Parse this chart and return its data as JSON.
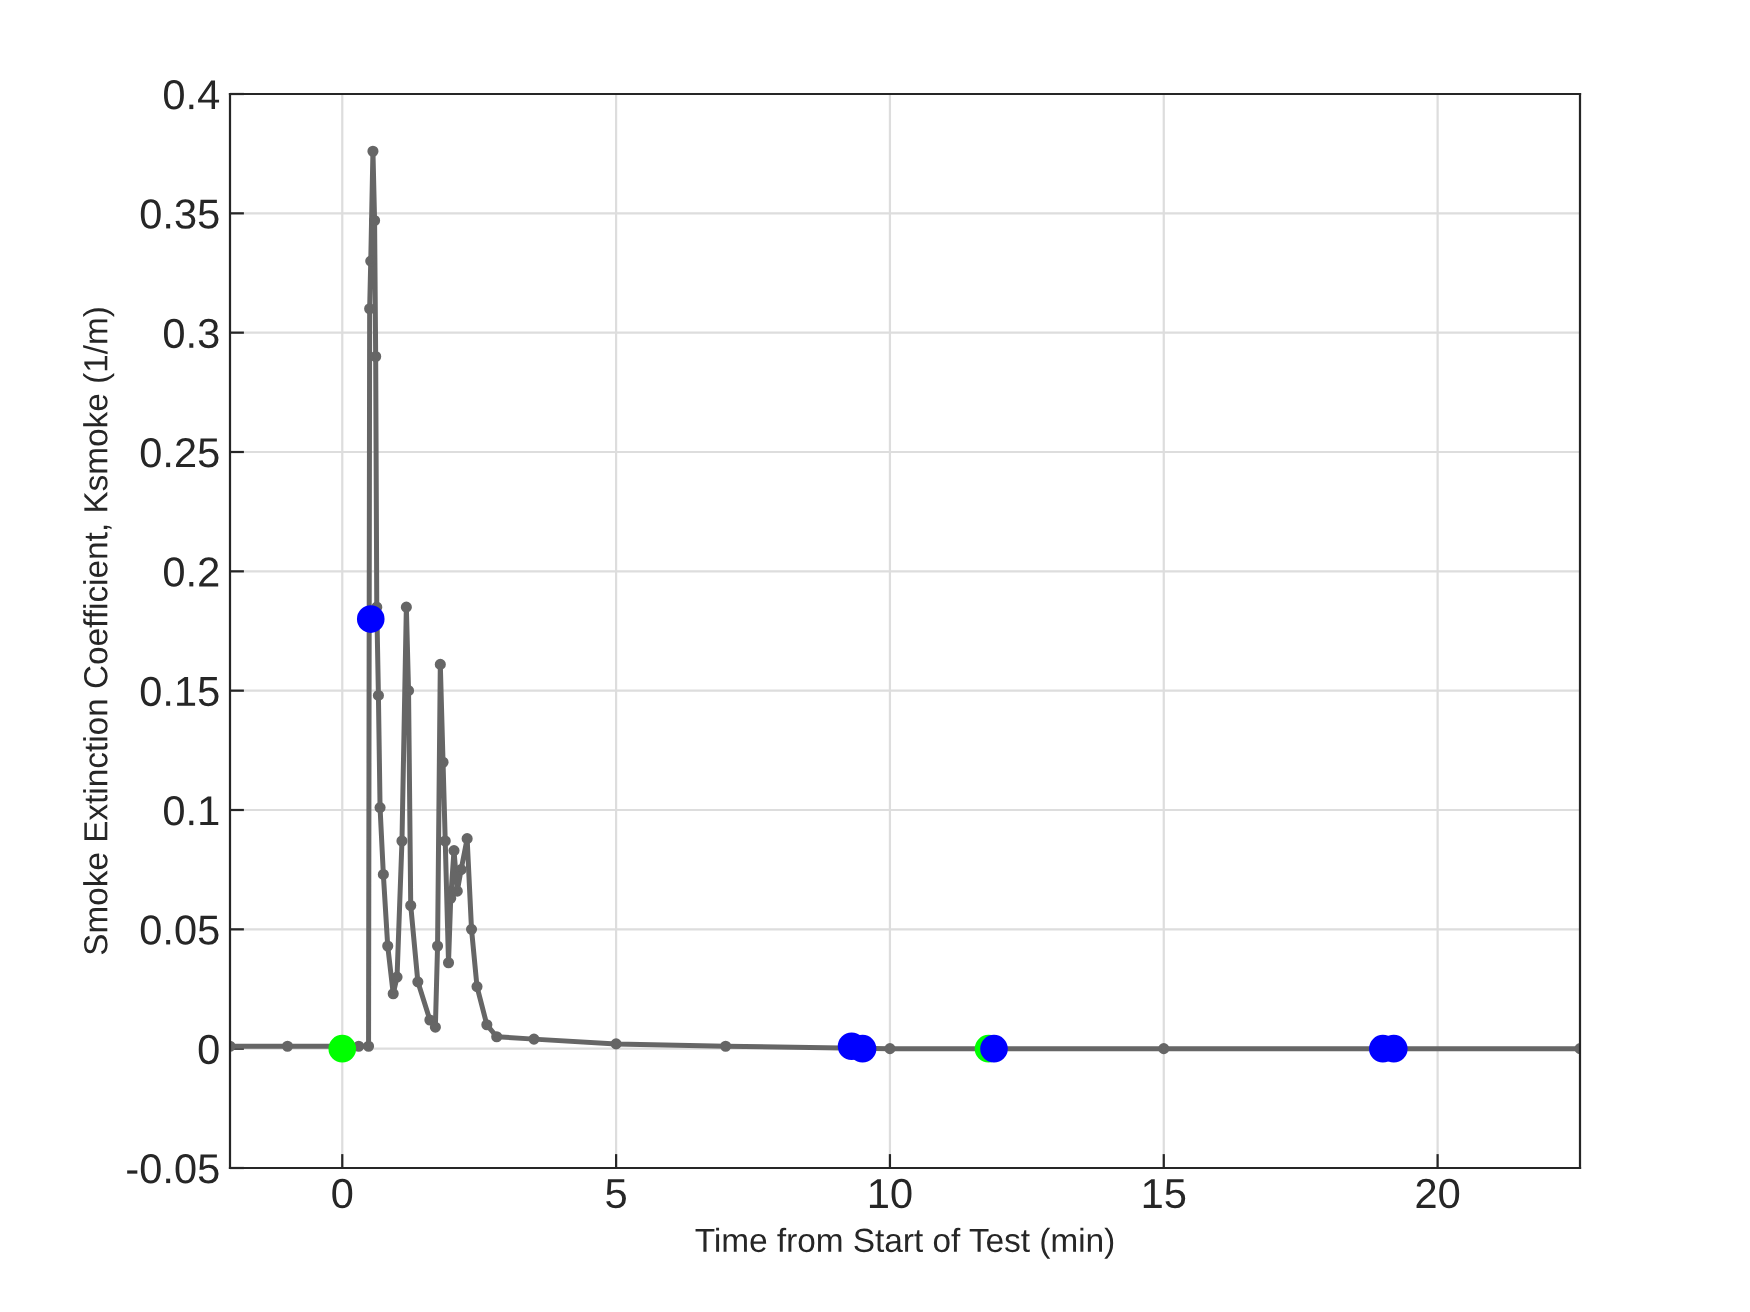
{
  "chart_data": {
    "type": "line",
    "xlabel": "Time from Start of Test (min)",
    "ylabel": "Smoke Extinction Coefficient, Ksmoke (1/m)",
    "xlim": [
      -2.05,
      22.6
    ],
    "xticks": [
      0,
      5,
      10,
      15,
      20
    ],
    "ylim": [
      -0.05,
      0.4
    ],
    "yticks": [
      -0.05,
      0,
      0.05,
      0.1,
      0.15,
      0.2,
      0.25,
      0.3,
      0.35,
      0.4
    ],
    "grid": true,
    "marker": "circle",
    "series": [
      {
        "color": "#666666",
        "x": [
          -2.05,
          -1,
          0,
          0.3,
          0.48,
          0.5,
          0.52,
          0.56,
          0.59,
          0.61,
          0.63,
          0.66,
          0.69,
          0.75,
          0.83,
          0.93,
          1.0,
          1.09,
          1.17,
          1.21,
          1.25,
          1.38,
          1.6,
          1.7,
          1.74,
          1.79,
          1.84,
          1.88,
          1.94,
          1.98,
          2.04,
          2.1,
          2.17,
          2.28,
          2.36,
          2.46,
          2.64,
          2.82,
          3.5,
          5,
          7,
          10,
          15,
          22.6
        ],
        "values": [
          0.001,
          0.001,
          0.001,
          0.001,
          0.001,
          0.31,
          0.33,
          0.376,
          0.347,
          0.29,
          0.185,
          0.148,
          0.101,
          0.073,
          0.043,
          0.023,
          0.03,
          0.087,
          0.185,
          0.15,
          0.06,
          0.028,
          0.012,
          0.009,
          0.043,
          0.161,
          0.12,
          0.087,
          0.036,
          0.063,
          0.083,
          0.066,
          0.075,
          0.088,
          0.05,
          0.026,
          0.01,
          0.005,
          0.004,
          0.002,
          0.001,
          0.0,
          0.0,
          0.0
        ]
      },
      {
        "type": "scatter",
        "color": "#00ff00",
        "x": [
          0,
          11.8
        ],
        "values": [
          0,
          0
        ]
      },
      {
        "type": "scatter",
        "color": "#0000ff",
        "x": [
          0.52,
          9.3,
          9.5,
          11.9,
          19.0,
          19.2
        ],
        "values": [
          0.18,
          0.001,
          0,
          0,
          0,
          0
        ]
      }
    ]
  }
}
